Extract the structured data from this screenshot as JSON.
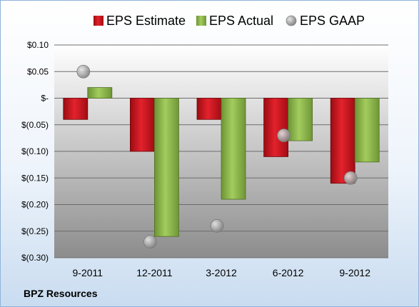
{
  "company": "BPZ Resources",
  "chart_data": {
    "type": "bar",
    "categories": [
      "9-2011",
      "12-2011",
      "3-2012",
      "6-2012",
      "9-2012"
    ],
    "series": [
      {
        "name": "EPS Estimate",
        "type": "bar",
        "color": "#c0101a",
        "values": [
          -0.04,
          -0.1,
          -0.04,
          -0.11,
          -0.16
        ]
      },
      {
        "name": "EPS Actual",
        "type": "bar",
        "color": "#8db84a",
        "values": [
          0.02,
          -0.26,
          -0.19,
          -0.08,
          -0.12
        ]
      },
      {
        "name": "EPS GAAP",
        "type": "scatter",
        "color": "#a0a0a0",
        "values": [
          0.05,
          -0.27,
          -0.24,
          -0.07,
          -0.15
        ]
      }
    ],
    "y_ticks": [
      {
        "value": 0.1,
        "label": "$0.10"
      },
      {
        "value": 0.05,
        "label": "$0.05"
      },
      {
        "value": 0.0,
        "label": "$-"
      },
      {
        "value": -0.05,
        "label": "$(0.05)"
      },
      {
        "value": -0.1,
        "label": "$(0.10)"
      },
      {
        "value": -0.15,
        "label": "$(0.15)"
      },
      {
        "value": -0.2,
        "label": "$(0.20)"
      },
      {
        "value": -0.25,
        "label": "$(0.25)"
      },
      {
        "value": -0.3,
        "label": "$(0.30)"
      }
    ],
    "ylim": [
      -0.3,
      0.1
    ],
    "grid": true,
    "legend_position": "top"
  }
}
